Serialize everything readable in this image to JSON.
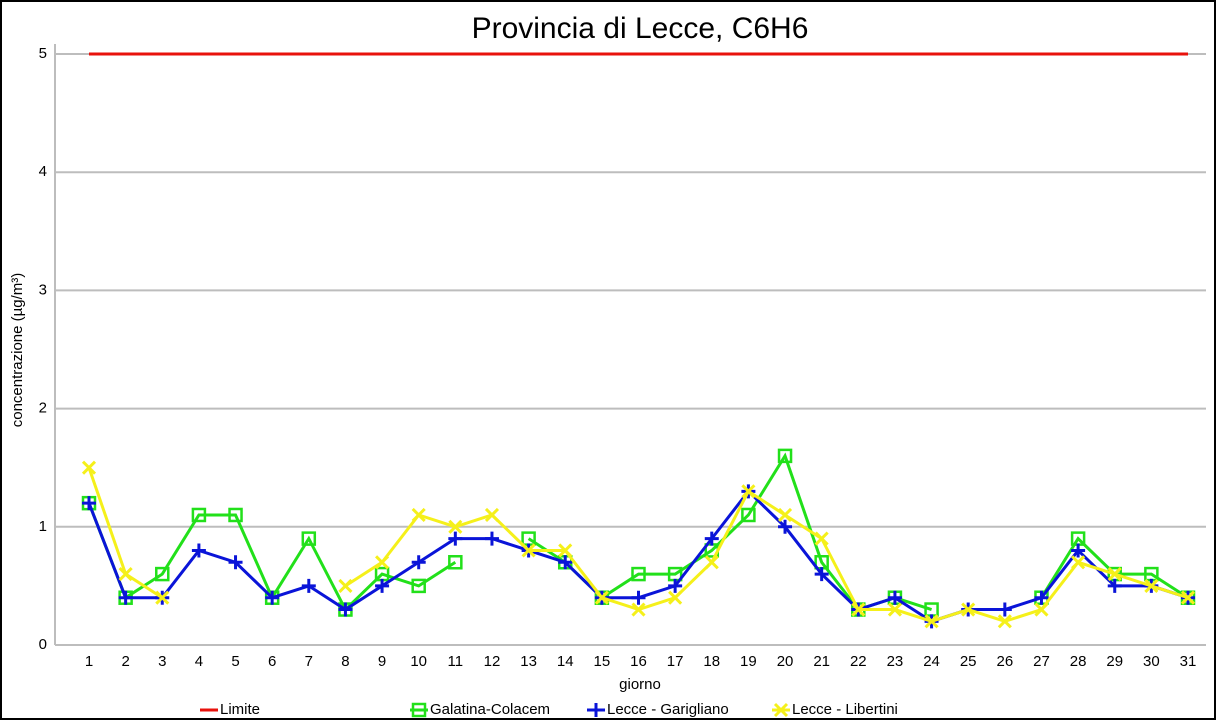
{
  "chart_data": {
    "type": "line",
    "title": "Provincia di Lecce, C6H6",
    "x_label": "giorno",
    "y_label": "concentrazione (µg/m³)",
    "categories": [
      "1",
      "2",
      "3",
      "4",
      "5",
      "6",
      "7",
      "8",
      "9",
      "10",
      "11",
      "12",
      "13",
      "14",
      "15",
      "16",
      "17",
      "18",
      "19",
      "20",
      "21",
      "22",
      "23",
      "24",
      "25",
      "26",
      "27",
      "28",
      "29",
      "30",
      "31"
    ],
    "ylim": [
      0,
      5
    ],
    "yticks": [
      0,
      1,
      2,
      3,
      4,
      5
    ],
    "grid": true,
    "legend": "bottom",
    "series": [
      {
        "name": "Limite",
        "color": "#e8120c",
        "marker": "none",
        "values": [
          5,
          5,
          5,
          5,
          5,
          5,
          5,
          5,
          5,
          5,
          5,
          5,
          5,
          5,
          5,
          5,
          5,
          5,
          5,
          5,
          5,
          5,
          5,
          5,
          5,
          5,
          5,
          5,
          5,
          5,
          5
        ]
      },
      {
        "name": "Galatina-Colacem",
        "color": "#22e01a",
        "marker": "square",
        "values": [
          1.2,
          0.4,
          0.6,
          1.1,
          1.1,
          0.4,
          0.9,
          0.3,
          0.6,
          0.5,
          0.7,
          null,
          0.9,
          0.7,
          0.4,
          0.6,
          0.6,
          0.8,
          1.1,
          1.6,
          0.7,
          0.3,
          0.4,
          0.3,
          null,
          null,
          0.4,
          0.9,
          0.6,
          0.6,
          0.4
        ]
      },
      {
        "name": "Lecce - Garigliano",
        "color": "#0a14d8",
        "marker": "plus",
        "values": [
          1.2,
          0.4,
          0.4,
          0.8,
          0.7,
          0.4,
          0.5,
          0.3,
          0.5,
          0.7,
          0.9,
          0.9,
          0.8,
          0.7,
          0.4,
          0.4,
          0.5,
          0.9,
          1.3,
          1.0,
          0.6,
          0.3,
          0.4,
          0.2,
          0.3,
          0.3,
          0.4,
          0.8,
          0.5,
          0.5,
          0.4
        ]
      },
      {
        "name": "Lecce - Libertini",
        "color": "#f5f01a",
        "marker": "x",
        "values": [
          1.5,
          0.6,
          0.4,
          null,
          null,
          null,
          null,
          0.5,
          0.7,
          1.1,
          1.0,
          1.1,
          0.8,
          0.8,
          0.4,
          0.3,
          0.4,
          0.7,
          1.3,
          1.1,
          0.9,
          0.3,
          0.3,
          0.2,
          0.3,
          0.2,
          0.3,
          0.7,
          0.6,
          0.5,
          0.4
        ]
      }
    ]
  }
}
